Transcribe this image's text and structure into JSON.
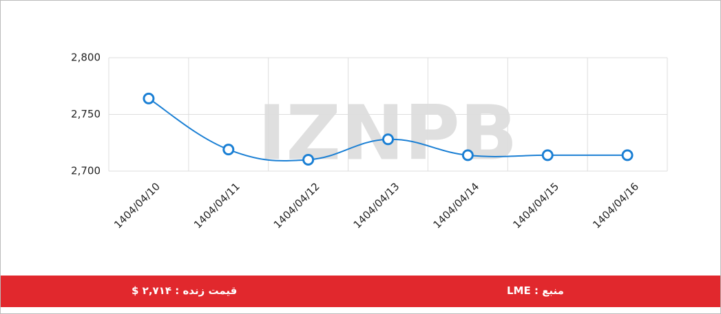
{
  "chart_data": {
    "type": "line",
    "watermark": "IZNPB",
    "categories": [
      "1404/04/10",
      "1404/04/11",
      "1404/04/12",
      "1404/04/13",
      "1404/04/14",
      "1404/04/15",
      "1404/04/16"
    ],
    "series": [
      {
        "color": "#1a7fd4",
        "values": [
          2764,
          2719,
          2710,
          2728,
          2714,
          2714,
          2714
        ]
      }
    ],
    "ylim": [
      2700,
      2800
    ],
    "yticks": [
      {
        "value": 2700,
        "label": "2,700"
      },
      {
        "value": 2750,
        "label": "2,750"
      },
      {
        "value": 2800,
        "label": "2,800"
      }
    ],
    "grid": true
  },
  "footer": {
    "price": "قیمت زنده : ۲,۷۱۴ $",
    "source": "منبع : LME"
  }
}
